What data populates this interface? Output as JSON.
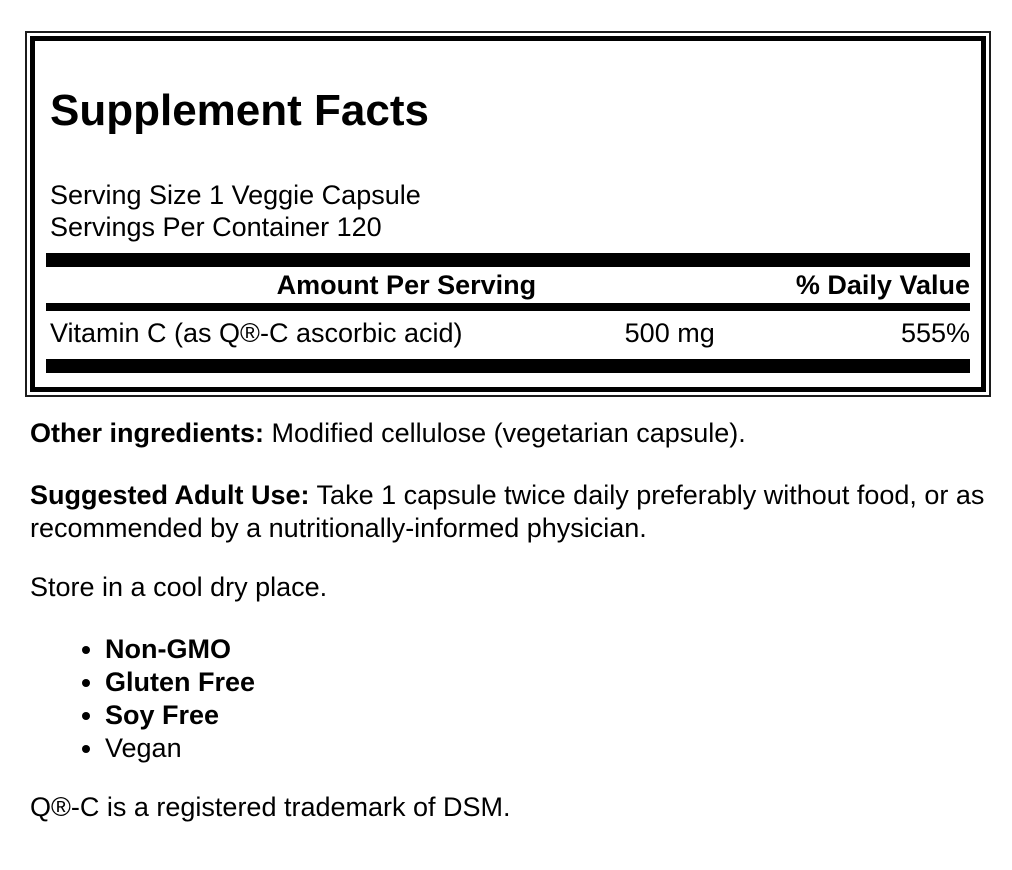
{
  "panel": {
    "title": "Supplement Facts",
    "serving_size": "Serving Size 1 Veggie Capsule",
    "servings_per_container": "Servings Per Container 120",
    "columns": {
      "amount": "Amount Per Serving",
      "daily_value": "% Daily Value"
    },
    "rows": [
      {
        "name": "Vitamin C (as Q®-C ascorbic acid)",
        "amount": "500 mg",
        "daily_value": "555%"
      }
    ]
  },
  "copy": {
    "other_ingredients_label": "Other ingredients:",
    "other_ingredients_text": "Modified cellulose (vegetarian capsule).",
    "suggested_use_label": "Suggested Adult Use:",
    "suggested_use_text": "Take 1 capsule twice daily preferably without food, or as recommended by a nutritionally-informed physician.",
    "storage": "Store in a cool dry place.",
    "features": [
      "Non-GMO",
      "Gluten Free",
      "Soy Free",
      "Vegan"
    ],
    "trademark": "Q®-C is a registered trademark of DSM."
  },
  "colors": {
    "text": "#000000",
    "background": "#ffffff",
    "rule": "#000000"
  }
}
